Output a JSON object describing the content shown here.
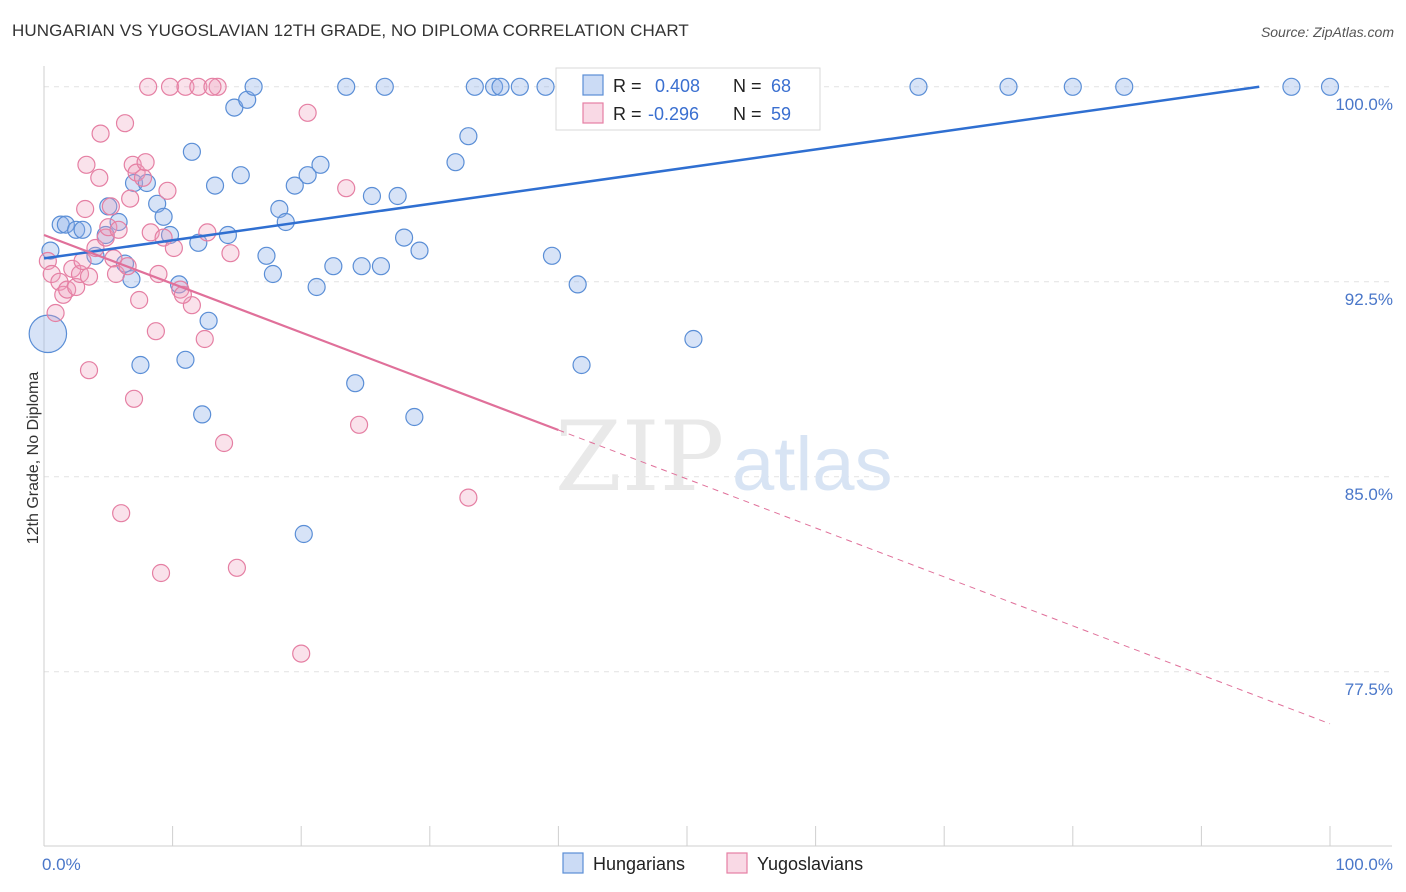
{
  "title": "HUNGARIAN VS YUGOSLAVIAN 12TH GRADE, NO DIPLOMA CORRELATION CHART",
  "source": "Source: ZipAtlas.com",
  "watermark": {
    "zip": "ZIP",
    "atlas": "atlas"
  },
  "colors": {
    "blue": "#5a8ed6",
    "blue_fill": "rgba(140,176,232,0.35)",
    "blue_line": "#2f6fd1",
    "pink": "#e57fa3",
    "pink_fill": "rgba(240,160,190,0.30)",
    "pink_line": "#e0709a",
    "grid": "#e2e2e2",
    "axis_text": "#4a77c9"
  },
  "legend": {
    "r_label": "R =",
    "n_label": "N =",
    "hungarians": {
      "r": "0.408",
      "n": "68"
    },
    "yugoslavians": {
      "r": "-0.296",
      "n": "59"
    }
  },
  "chart_data": {
    "type": "scatter",
    "title": "HUNGARIAN VS YUGOSLAVIAN 12TH GRADE, NO DIPLOMA CORRELATION CHART",
    "xlabel": "",
    "ylabel": "12th Grade, No Diploma",
    "x_ticks": [
      "0.0%",
      "100.0%"
    ],
    "y_ticks": [
      {
        "value": 100.0,
        "label": "100.0%"
      },
      {
        "value": 92.5,
        "label": "92.5%"
      },
      {
        "value": 85.0,
        "label": "85.0%"
      },
      {
        "value": 77.5,
        "label": "77.5%"
      }
    ],
    "xlim": [
      0,
      100
    ],
    "ylim": [
      70.8,
      100.8
    ],
    "grid": true,
    "legend_position": "top-center",
    "series": [
      {
        "name": "Hungarians",
        "trend": {
          "x0": 0,
          "y0": 93.4,
          "x1": 94.5,
          "y1": 100.0
        },
        "points": [
          [
            0.3,
            90.5,
            2.2
          ],
          [
            0.5,
            93.7,
            1
          ],
          [
            1.3,
            94.7,
            1
          ],
          [
            1.7,
            94.7,
            1
          ],
          [
            2.5,
            94.5,
            1
          ],
          [
            3.0,
            94.5,
            1
          ],
          [
            4.0,
            93.5,
            1
          ],
          [
            4.8,
            94.3,
            1
          ],
          [
            5.0,
            95.4,
            1
          ],
          [
            5.8,
            94.8,
            1
          ],
          [
            6.3,
            93.2,
            1
          ],
          [
            6.8,
            92.6,
            1
          ],
          [
            7.0,
            96.3,
            1
          ],
          [
            7.5,
            89.3,
            1
          ],
          [
            8.0,
            96.3,
            1
          ],
          [
            8.8,
            95.5,
            1
          ],
          [
            9.3,
            95.0,
            1
          ],
          [
            9.8,
            94.3,
            1
          ],
          [
            10.5,
            92.4,
            1
          ],
          [
            11.0,
            89.5,
            1
          ],
          [
            11.5,
            97.5,
            1
          ],
          [
            12.0,
            94.0,
            1
          ],
          [
            12.3,
            87.4,
            1
          ],
          [
            12.8,
            91.0,
            1
          ],
          [
            13.3,
            96.2,
            1
          ],
          [
            14.3,
            94.3,
            1
          ],
          [
            14.8,
            99.2,
            1
          ],
          [
            15.3,
            96.6,
            1
          ],
          [
            15.8,
            99.5,
            1
          ],
          [
            16.3,
            100.0,
            1
          ],
          [
            17.3,
            93.5,
            1
          ],
          [
            17.8,
            92.8,
            1
          ],
          [
            18.3,
            95.3,
            1
          ],
          [
            18.8,
            94.8,
            1
          ],
          [
            19.5,
            96.2,
            1
          ],
          [
            20.2,
            82.8,
            1
          ],
          [
            20.5,
            96.6,
            1
          ],
          [
            21.2,
            92.3,
            1
          ],
          [
            21.5,
            97.0,
            1
          ],
          [
            22.5,
            93.1,
            1
          ],
          [
            23.5,
            100.0,
            1
          ],
          [
            24.2,
            88.6,
            1
          ],
          [
            24.7,
            93.1,
            1
          ],
          [
            25.5,
            95.8,
            1
          ],
          [
            26.2,
            93.1,
            1
          ],
          [
            26.5,
            100.0,
            1
          ],
          [
            27.5,
            95.8,
            1
          ],
          [
            28.0,
            94.2,
            1
          ],
          [
            28.8,
            87.3,
            1
          ],
          [
            29.2,
            93.7,
            1
          ],
          [
            32.0,
            97.1,
            1
          ],
          [
            33.0,
            98.1,
            1
          ],
          [
            33.5,
            100.0,
            1
          ],
          [
            35.0,
            100.0,
            1
          ],
          [
            35.5,
            100.0,
            1
          ],
          [
            37.0,
            100.0,
            1
          ],
          [
            39.0,
            100.0,
            1
          ],
          [
            39.5,
            93.5,
            1
          ],
          [
            41.5,
            92.4,
            1
          ],
          [
            41.8,
            89.3,
            1
          ],
          [
            50.5,
            90.3,
            1
          ],
          [
            53.5,
            100.0,
            1
          ],
          [
            68.0,
            100.0,
            1
          ],
          [
            75.0,
            100.0,
            1
          ],
          [
            80.0,
            100.0,
            1
          ],
          [
            84.0,
            100.0,
            1
          ],
          [
            100.0,
            100.0,
            1
          ],
          [
            97.0,
            100.0,
            1
          ]
        ]
      },
      {
        "name": "Yugoslavians",
        "trend": {
          "x0": 0,
          "y0": 94.3,
          "x1": 40.0,
          "y1": 86.8,
          "x2": 100,
          "y2": 75.5
        },
        "points": [
          [
            0.3,
            93.3,
            1
          ],
          [
            0.6,
            92.8,
            1
          ],
          [
            0.9,
            91.3,
            1
          ],
          [
            1.2,
            92.5,
            1
          ],
          [
            1.5,
            92.0,
            1
          ],
          [
            1.8,
            92.2,
            1
          ],
          [
            2.2,
            93.0,
            1
          ],
          [
            2.5,
            92.3,
            1
          ],
          [
            2.8,
            92.8,
            1
          ],
          [
            3.0,
            93.3,
            1
          ],
          [
            3.2,
            95.3,
            1
          ],
          [
            3.5,
            92.7,
            1
          ],
          [
            3.3,
            97.0,
            1
          ],
          [
            3.5,
            89.1,
            1
          ],
          [
            4.0,
            93.8,
            1
          ],
          [
            4.3,
            96.5,
            1
          ],
          [
            4.4,
            98.2,
            1
          ],
          [
            4.8,
            94.2,
            1
          ],
          [
            5.0,
            94.6,
            1
          ],
          [
            5.2,
            95.4,
            1
          ],
          [
            5.4,
            93.4,
            1
          ],
          [
            5.6,
            92.8,
            1
          ],
          [
            5.8,
            94.5,
            1
          ],
          [
            6.0,
            83.6,
            1
          ],
          [
            6.3,
            98.6,
            1
          ],
          [
            6.5,
            93.1,
            1
          ],
          [
            6.7,
            95.7,
            1
          ],
          [
            6.9,
            97.0,
            1
          ],
          [
            7.0,
            88.0,
            1
          ],
          [
            7.2,
            96.7,
            1
          ],
          [
            7.4,
            91.8,
            1
          ],
          [
            7.7,
            96.5,
            1
          ],
          [
            7.9,
            97.1,
            1
          ],
          [
            8.1,
            100.0,
            1
          ],
          [
            8.3,
            94.4,
            1
          ],
          [
            8.7,
            90.6,
            1
          ],
          [
            8.9,
            92.8,
            1
          ],
          [
            9.1,
            81.3,
            1
          ],
          [
            9.3,
            94.2,
            1
          ],
          [
            9.6,
            96.0,
            1
          ],
          [
            9.8,
            100.0,
            1
          ],
          [
            10.1,
            93.8,
            1
          ],
          [
            10.6,
            92.2,
            1
          ],
          [
            11.0,
            100.0,
            1
          ],
          [
            11.5,
            91.6,
            1
          ],
          [
            12.0,
            100.0,
            1
          ],
          [
            12.5,
            90.3,
            1
          ],
          [
            13.5,
            100.0,
            1
          ],
          [
            14.0,
            86.3,
            1
          ],
          [
            14.5,
            93.6,
            1
          ],
          [
            15.0,
            81.5,
            1
          ],
          [
            20.0,
            78.2,
            1
          ],
          [
            20.5,
            99.0,
            1
          ],
          [
            23.5,
            96.1,
            1
          ],
          [
            24.5,
            87.0,
            1
          ],
          [
            33.0,
            84.2,
            1
          ],
          [
            10.8,
            92.0,
            1
          ],
          [
            12.7,
            94.4,
            1
          ],
          [
            13.1,
            100.0,
            1
          ]
        ]
      }
    ]
  }
}
